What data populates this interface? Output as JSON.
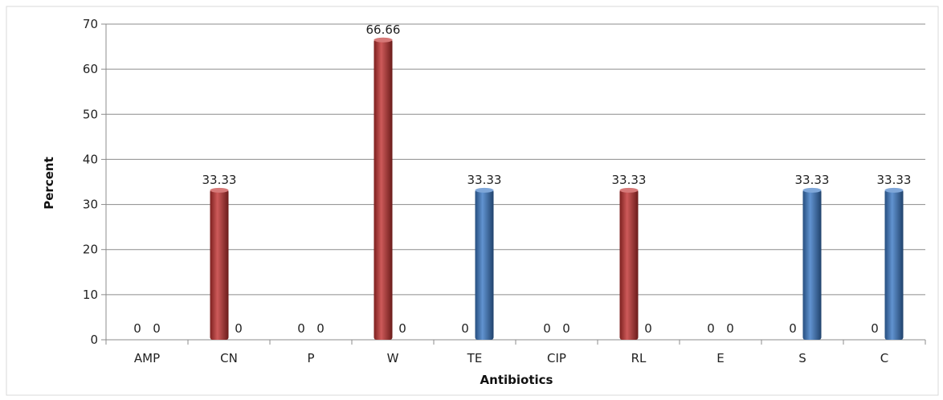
{
  "chart_data": {
    "type": "bar",
    "categories": [
      "AMP",
      "CN",
      "P",
      "W",
      "TE",
      "CIP",
      "RL",
      "E",
      "S",
      "C"
    ],
    "series": [
      {
        "color": "#c0312f",
        "values": [
          0,
          33.33,
          0,
          66.66,
          0,
          0,
          33.33,
          0,
          0,
          0
        ]
      },
      {
        "color": "#3a78c4",
        "values": [
          0,
          0,
          0,
          0,
          33.33,
          0,
          0,
          0,
          33.33,
          33.33
        ]
      }
    ],
    "data_labels": [
      [
        "0",
        "33.33",
        "0",
        "66.66",
        "0",
        "0",
        "33.33",
        "0",
        "0",
        "0"
      ],
      [
        "0",
        "0",
        "0",
        "0",
        "33.33",
        "0",
        "0",
        "0",
        "33.33",
        "33.33"
      ]
    ],
    "xlabel": "Antibiotics",
    "ylabel": "Percent",
    "ylim": [
      0,
      70
    ],
    "yticks": [
      "0",
      "10",
      "20",
      "30",
      "40",
      "50",
      "60",
      "70"
    ],
    "grid": true,
    "legend": "none"
  }
}
